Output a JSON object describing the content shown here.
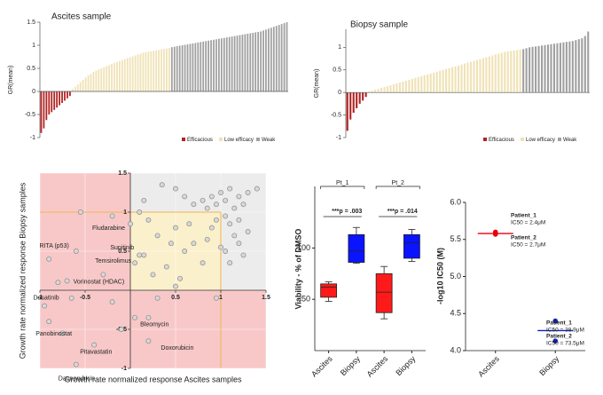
{
  "chart_data": [
    {
      "type": "bar",
      "title": "Ascites sample",
      "ylabel": "GR(mean)",
      "ylim": [
        -1,
        1.5
      ],
      "yticks": [
        -1,
        -0.5,
        0,
        0.5,
        1,
        1.5
      ],
      "series": [
        {
          "name": "Efficacious",
          "color": "#b22222",
          "values": [
            -0.9,
            -0.8,
            -0.62,
            -0.5,
            -0.45,
            -0.4,
            -0.35,
            -0.3,
            -0.25,
            -0.2,
            -0.15,
            -0.1
          ]
        },
        {
          "name": "Low efficacy",
          "color": "#f0e2b6",
          "values": [
            0.05,
            0.1,
            0.15,
            0.2,
            0.25,
            0.3,
            0.35,
            0.38,
            0.42,
            0.45,
            0.48,
            0.5,
            0.52,
            0.55,
            0.57,
            0.6,
            0.62,
            0.64,
            0.66,
            0.68,
            0.7,
            0.72,
            0.74,
            0.76,
            0.78,
            0.8,
            0.82,
            0.84,
            0.85,
            0.86,
            0.87,
            0.88,
            0.89,
            0.9,
            0.91,
            0.92,
            0.93,
            0.94
          ]
        },
        {
          "name": "Weak",
          "color": "#a0a0a0",
          "values": [
            0.96,
            0.97,
            0.98,
            0.99,
            1.0,
            1.01,
            1.02,
            1.03,
            1.04,
            1.05,
            1.06,
            1.07,
            1.08,
            1.09,
            1.1,
            1.11,
            1.12,
            1.13,
            1.14,
            1.15,
            1.16,
            1.17,
            1.18,
            1.19,
            1.2,
            1.21,
            1.22,
            1.23,
            1.24,
            1.25,
            1.26,
            1.27,
            1.28,
            1.29,
            1.3,
            1.32,
            1.34,
            1.36,
            1.38,
            1.4,
            1.42,
            1.44,
            1.46,
            1.48,
            1.5
          ]
        }
      ]
    },
    {
      "type": "bar",
      "title": "Biopsy sample",
      "ylabel": "GR(mean)",
      "ylim": [
        -1,
        1.4
      ],
      "yticks": [
        -1,
        -0.5,
        0,
        0.5,
        1
      ],
      "series": [
        {
          "name": "Efficacious",
          "color": "#b22222",
          "values": [
            -0.85,
            -0.6,
            -0.45,
            -0.35,
            -0.25,
            -0.18,
            -0.1
          ]
        },
        {
          "name": "Low efficacy",
          "color": "#f0e2b6",
          "values": [
            0.02,
            0.04,
            0.06,
            0.08,
            0.1,
            0.12,
            0.14,
            0.16,
            0.18,
            0.2,
            0.22,
            0.24,
            0.26,
            0.28,
            0.3,
            0.32,
            0.34,
            0.36,
            0.38,
            0.4,
            0.42,
            0.44,
            0.46,
            0.48,
            0.5,
            0.52,
            0.54,
            0.56,
            0.58,
            0.6,
            0.62,
            0.64,
            0.66,
            0.68,
            0.7,
            0.72,
            0.74,
            0.76,
            0.78,
            0.8,
            0.82,
            0.84,
            0.86,
            0.88,
            0.9,
            0.91,
            0.92,
            0.93,
            0.94,
            0.95
          ]
        },
        {
          "name": "Weak",
          "color": "#a0a0a0",
          "values": [
            0.96,
            0.98,
            1.0,
            1.01,
            1.02,
            1.03,
            1.04,
            1.05,
            1.06,
            1.07,
            1.08,
            1.09,
            1.1,
            1.11,
            1.12,
            1.13,
            1.14,
            1.16,
            1.18,
            1.2,
            1.25,
            1.35
          ]
        }
      ]
    },
    {
      "type": "scatter",
      "xlabel": "Growth rate normalized response Ascites samples",
      "ylabel": "Growth rate normalized response Biopsy samples",
      "xlim": [
        -1,
        1.5
      ],
      "ylim": [
        -1,
        1.5
      ],
      "xticks": [
        -1,
        -0.5,
        0.5,
        1,
        1.5
      ],
      "yticks": [
        -1,
        -0.5,
        0.5,
        1,
        1.5
      ],
      "grid": true,
      "x": [
        0.9,
        0.95,
        1.0,
        1.05,
        1.1,
        1.15,
        1.2,
        0.85,
        0.8,
        1.25,
        1.3,
        0.7,
        0.6,
        0.5,
        0.35,
        0.15,
        0.1,
        1.05,
        1.1,
        1.15,
        1.2,
        1.3,
        1.0,
        1.25,
        1.1,
        1.05,
        1.2,
        0.95,
        0.9,
        0.85,
        0.2,
        0.3,
        0.5,
        0.6,
        0.4,
        0.7,
        0.25,
        0.55,
        0.15,
        0.8,
        0.45,
        0.65,
        -0.9,
        -0.8,
        -0.3,
        -0.2,
        -0.1,
        0.3,
        0.5,
        -0.95,
        -0.75,
        0.95,
        -0.55,
        -0.2,
        1.4,
        0.2
      ],
      "y": [
        1.2,
        1.1,
        1.25,
        1.15,
        1.3,
        1.05,
        1.2,
        1.05,
        1.15,
        1.1,
        1.25,
        1.1,
        1.2,
        1.3,
        1.35,
        1.15,
        1.0,
        0.95,
        0.85,
        0.7,
        0.6,
        0.75,
        0.55,
        0.45,
        0.35,
        0.5,
        0.9,
        0.9,
        0.8,
        0.65,
        0.9,
        0.7,
        0.8,
        0.5,
        0.3,
        0.6,
        0.2,
        0.15,
        0.45,
        0.35,
        0.6,
        0.85,
        0.4,
        0.1,
        0.2,
        -0.15,
        -0.5,
        -0.1,
        0.05,
        -0.2,
        -0.55,
        -0.1,
        1.0,
        0.95,
        1.3,
        -0.35
      ],
      "labeled": [
        {
          "label": "Fludarabine",
          "x": 0.0,
          "y": 0.85
        },
        {
          "label": "RITA (p53)",
          "x": -0.6,
          "y": 0.5
        },
        {
          "label": "Sunitinib",
          "x": 0.1,
          "y": 0.45
        },
        {
          "label": "Temsirolimus",
          "x": 0.05,
          "y": 0.35
        },
        {
          "label": "Vorinostat (HDAC)",
          "x": -0.7,
          "y": 0.12
        },
        {
          "label": "Dasatinib",
          "x": -0.65,
          "y": -0.1
        },
        {
          "label": "Panobinostat",
          "x": -0.9,
          "y": -0.4
        },
        {
          "label": "Bleomycin",
          "x": 0.05,
          "y": -0.35
        },
        {
          "label": "Doxorubicin",
          "x": 0.2,
          "y": -0.65
        },
        {
          "label": "Pitavastatin",
          "x": -0.4,
          "y": -0.7
        },
        {
          "label": "Daunorubicin",
          "x": -0.6,
          "y": -0.95
        }
      ]
    },
    {
      "type": "box",
      "ylabel": "Viability - % of DMSO",
      "ylim": [
        0,
        160
      ],
      "yticks": [
        50,
        100
      ],
      "categories": [
        "Ascites",
        "Biopsy",
        "Ascites",
        "Biopsy"
      ],
      "colors": [
        "#ff1a1a",
        "#0a14ff",
        "#ff1a1a",
        "#0a14ff"
      ],
      "groups": [
        "Pt_1",
        "Pt_2"
      ],
      "annotations": [
        "***p = .003",
        "***p = .014"
      ],
      "boxes": [
        {
          "min": 48,
          "q1": 52,
          "median": 62,
          "q3": 65,
          "max": 67
        },
        {
          "min": 85,
          "q1": 86,
          "median": 97,
          "q3": 113,
          "max": 120
        },
        {
          "min": 31,
          "q1": 37,
          "median": 57,
          "q3": 75,
          "max": 82
        },
        {
          "min": 87,
          "q1": 90,
          "median": 105,
          "q3": 113,
          "max": 118
        }
      ]
    },
    {
      "type": "strip",
      "ylabel": "-log10 IC50 (M)",
      "ylim": [
        4.0,
        6.0
      ],
      "yticks": [
        {
          "value": 4.0,
          "label": "4.0"
        },
        {
          "value": 4.5,
          "label": "4.5"
        },
        {
          "value": 5.0,
          "label": "5.0"
        },
        {
          "value": 5.5,
          "label": "5.5"
        },
        {
          "value": 6.0,
          "label": "6.0"
        }
      ],
      "categories": [
        "Ascites",
        "Biopsy"
      ],
      "colors": [
        "#e8000b",
        "#1020c0"
      ],
      "points": [
        [
          5.6,
          5.57
        ],
        [
          4.4,
          4.13
        ]
      ],
      "means": [
        5.58,
        4.27
      ],
      "annotations": [
        {
          "patient": "Patient_1",
          "ic50": "IC50 = 2.4μM"
        },
        {
          "patient": "Patient_2",
          "ic50": "IC50 = 2.7μM"
        },
        {
          "patient": "Patient_1",
          "ic50": "IC50 = 38.9μM"
        },
        {
          "patient": "Patient_2",
          "ic50": "IC50 = 73.5μM"
        }
      ]
    }
  ]
}
